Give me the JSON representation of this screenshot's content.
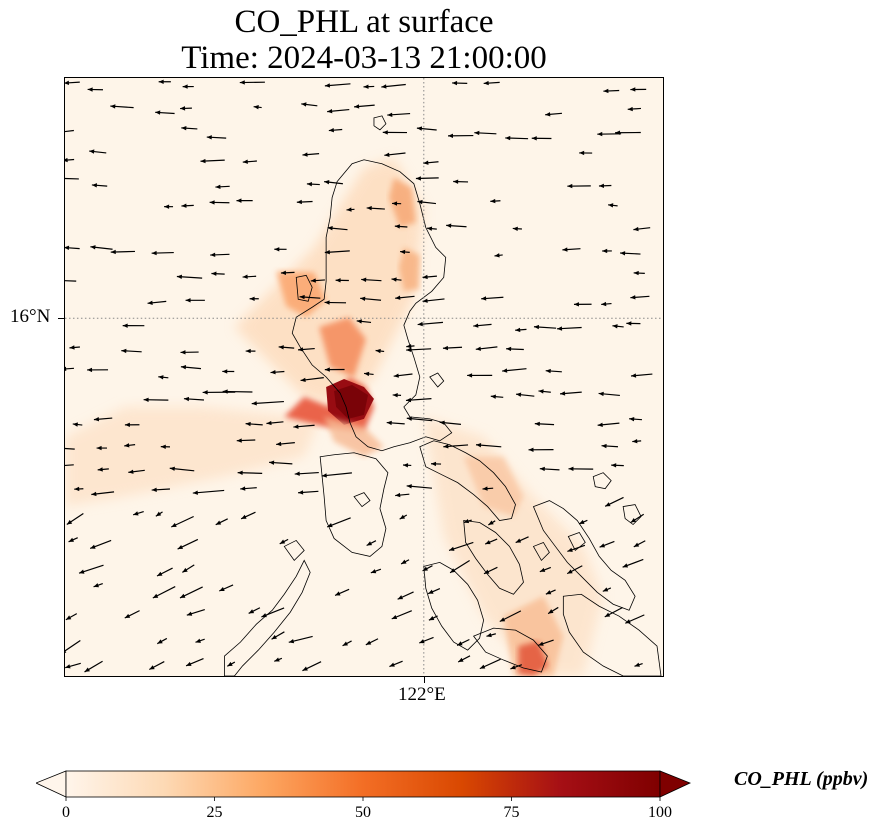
{
  "title_line_1": "CO_PHL at surface",
  "title_line_2": "Time: 2024-03-13 21:00:00",
  "axes": {
    "lat_tick_label": "16°N",
    "lon_tick_label": "122°E",
    "lat_tick_value": 16,
    "lon_tick_value": 122
  },
  "colorbar": {
    "title": "CO_PHL (ppbv)",
    "min": 0,
    "max": 100,
    "ticks": [
      "0",
      "25",
      "50",
      "75",
      "100"
    ],
    "extend": "both",
    "colormap": [
      "#fff5eb",
      "#fdd9b4",
      "#fda762",
      "#f36e25",
      "#d94801",
      "#a50f15",
      "#7f0000"
    ]
  },
  "map": {
    "gridlines": "dotted",
    "coastline_color": "#000000",
    "vector_color": "#000000",
    "background_color": "#fef5e9"
  }
}
